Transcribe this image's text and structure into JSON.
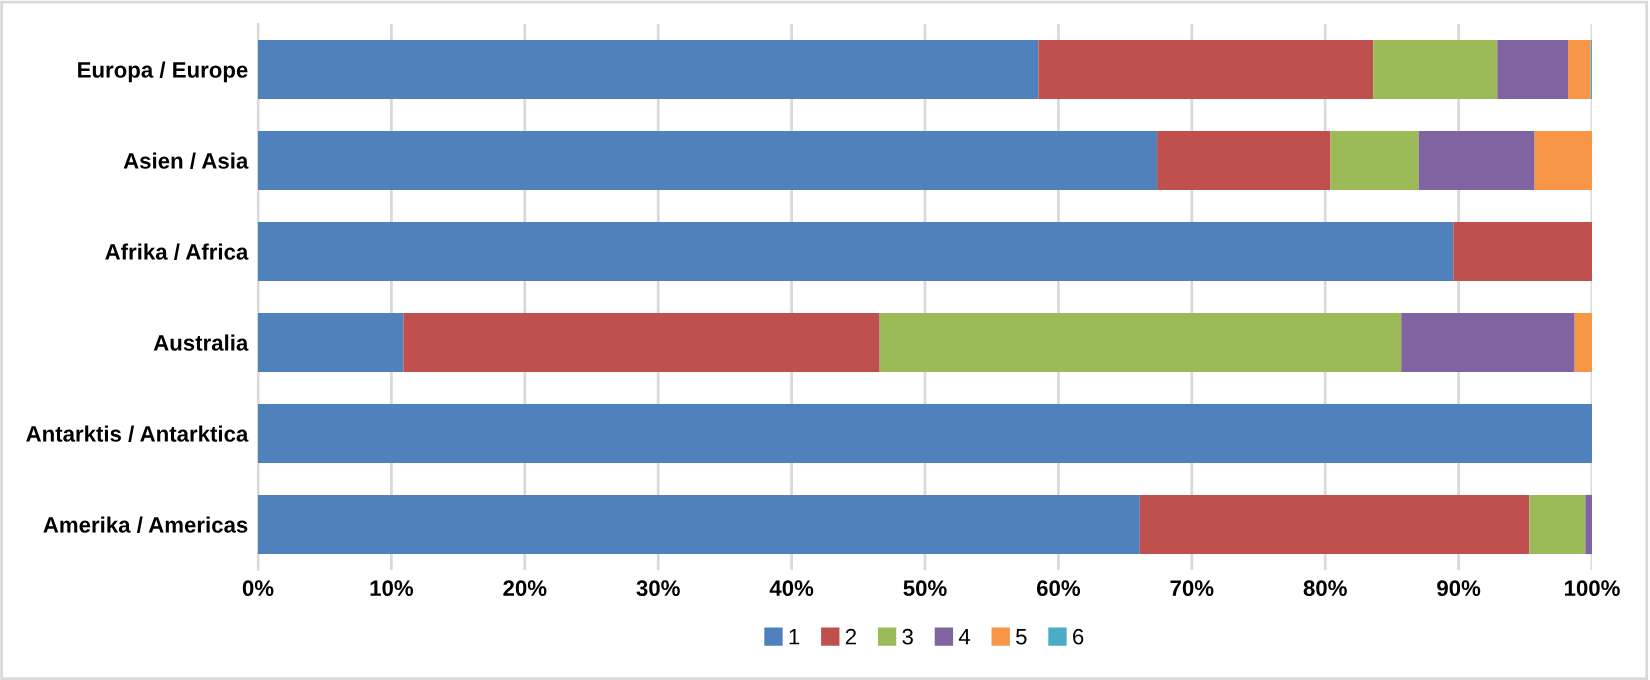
{
  "chart_data": {
    "type": "bar",
    "orientation": "horizontal",
    "stacked": true,
    "categories": [
      "Europa / Europe",
      "Asien / Asia",
      "Afrika / Africa",
      "Australia",
      "Antarktis / Antarktica",
      "Amerika / Americas"
    ],
    "series": [
      {
        "name": "1",
        "color": "#4f81bd",
        "values": [
          58.5,
          67.4,
          89.6,
          10.9,
          100,
          66.1
        ]
      },
      {
        "name": "2",
        "color": "#c0504d",
        "values": [
          25.1,
          13.0,
          10.4,
          35.7,
          0,
          29.2
        ]
      },
      {
        "name": "3",
        "color": "#9bbb59",
        "values": [
          9.3,
          6.6,
          0,
          39.1,
          0,
          4.2
        ]
      },
      {
        "name": "4",
        "color": "#8064a2",
        "values": [
          5.3,
          8.7,
          0,
          13.0,
          0,
          0.5
        ]
      },
      {
        "name": "5",
        "color": "#f79646",
        "values": [
          1.7,
          4.3,
          0,
          1.3,
          0,
          0
        ]
      },
      {
        "name": "6",
        "color": "#4bacc6",
        "values": [
          0.1,
          0,
          0,
          0,
          0,
          0
        ]
      }
    ],
    "xlim": [
      0,
      100
    ],
    "xticks": [
      {
        "value": 0,
        "label": "0%"
      },
      {
        "value": 10,
        "label": "10%"
      },
      {
        "value": 20,
        "label": "20%"
      },
      {
        "value": 30,
        "label": "30%"
      },
      {
        "value": 40,
        "label": "40%"
      },
      {
        "value": 50,
        "label": "50%"
      },
      {
        "value": 60,
        "label": "60%"
      },
      {
        "value": 70,
        "label": "70%"
      },
      {
        "value": 80,
        "label": "80%"
      },
      {
        "value": 90,
        "label": "90%"
      },
      {
        "value": 100,
        "label": "100%"
      }
    ],
    "grid": "x",
    "legend": "bottom"
  }
}
